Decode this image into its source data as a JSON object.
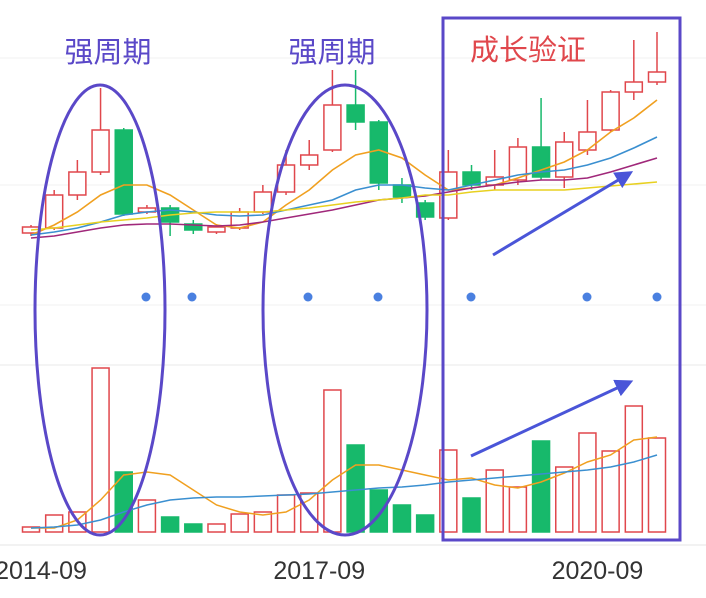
{
  "chart_data": {
    "type": "candlestick",
    "categories": [
      "2014-09",
      null,
      null,
      null,
      null,
      null,
      null,
      null,
      null,
      null,
      null,
      null,
      "2017-09",
      null,
      null,
      null,
      null,
      null,
      null,
      null,
      null,
      null,
      null,
      null,
      "2020-09",
      null,
      null,
      null
    ],
    "up_color": "#e0474c",
    "down_color": "#17b96b",
    "ylim": [
      0,
      300
    ],
    "open": [
      67,
      72,
      105,
      128,
      170,
      88,
      92,
      76,
      68,
      72,
      88,
      108,
      135,
      150,
      195,
      178,
      115,
      97,
      82,
      128,
      115,
      120,
      153,
      123,
      150,
      170,
      208,
      218
    ],
    "close": [
      73,
      105,
      128,
      170,
      86,
      92,
      78,
      70,
      73,
      88,
      108,
      135,
      145,
      195,
      178,
      117,
      103,
      83,
      128,
      115,
      123,
      153,
      123,
      158,
      168,
      208,
      218,
      228
    ],
    "high": [
      75,
      110,
      140,
      212,
      172,
      95,
      95,
      80,
      76,
      92,
      115,
      150,
      160,
      230,
      230,
      180,
      122,
      100,
      150,
      135,
      150,
      162,
      202,
      168,
      200,
      210,
      260,
      268
    ],
    "low": [
      64,
      70,
      100,
      125,
      84,
      86,
      64,
      66,
      66,
      70,
      86,
      105,
      130,
      148,
      170,
      110,
      97,
      80,
      80,
      110,
      110,
      115,
      120,
      112,
      145,
      168,
      200,
      215
    ],
    "ma_lines": [
      {
        "color": "#f0a020",
        "values": [
          65,
          75,
          88,
          105,
          115,
          115,
          105,
          90,
          75,
          72,
          78,
          95,
          110,
          130,
          145,
          150,
          142,
          125,
          110,
          112,
          115,
          122,
          130,
          138,
          150,
          168,
          182,
          200
        ]
      },
      {
        "color": "#3a8fd0",
        "values": [
          65,
          68,
          72,
          78,
          85,
          88,
          90,
          88,
          85,
          84,
          85,
          90,
          95,
          100,
          110,
          115,
          115,
          112,
          110,
          115,
          120,
          125,
          128,
          130,
          135,
          142,
          152,
          163
        ]
      },
      {
        "color": "#a0287a",
        "values": [
          62,
          64,
          68,
          72,
          75,
          76,
          76,
          75,
          74,
          75,
          78,
          82,
          86,
          90,
          95,
          100,
          102,
          104,
          108,
          112,
          115,
          118,
          120,
          120,
          122,
          128,
          135,
          142
        ]
      },
      {
        "color": "#e8d020",
        "values": [
          70,
          72,
          75,
          78,
          80,
          82,
          85,
          87,
          88,
          88,
          88,
          90,
          92,
          95,
          98,
          100,
          102,
          105,
          105,
          108,
          110,
          110,
          110,
          110,
          112,
          114,
          116,
          118
        ]
      }
    ],
    "volume": {
      "ylim": [
        0,
        200
      ],
      "values": [
        5,
        17,
        20,
        164,
        60,
        32,
        15,
        8,
        8,
        18,
        20,
        37,
        39,
        142,
        87,
        42,
        27,
        17,
        82,
        34,
        62,
        45,
        91,
        65,
        99,
        81,
        126,
        94
      ],
      "ma_lines": [
        {
          "color": "#f0a020",
          "values": [
            4,
            4,
            12,
            32,
            57,
            60,
            57,
            42,
            27,
            20,
            17,
            20,
            32,
            52,
            67,
            67,
            62,
            57,
            52,
            54,
            47,
            44,
            50,
            59,
            70,
            77,
            92,
            95
          ]
        },
        {
          "color": "#3a8fd0",
          "values": [
            4,
            5,
            7,
            12,
            20,
            27,
            32,
            34,
            35,
            35,
            36,
            37,
            38,
            40,
            42,
            44,
            45,
            47,
            50,
            52,
            54,
            56,
            58,
            60,
            62,
            65,
            70,
            77
          ]
        }
      ]
    },
    "annotations": [
      "强周期",
      "强周期",
      "成长验证"
    ]
  }
}
